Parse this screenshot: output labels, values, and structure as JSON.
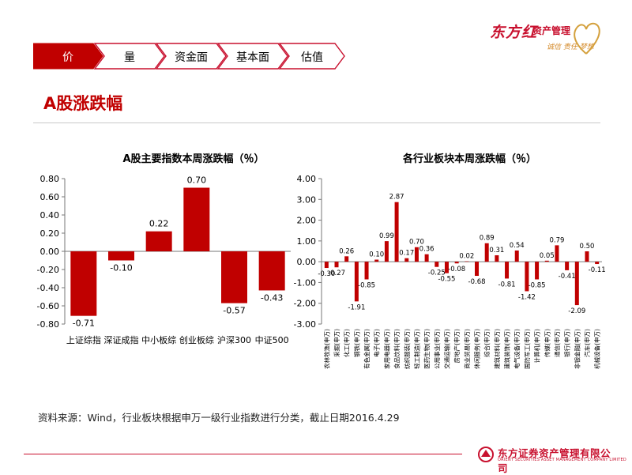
{
  "header": {
    "tabs": [
      {
        "label": "价",
        "active": true
      },
      {
        "label": "量",
        "active": false
      },
      {
        "label": "资金面",
        "active": false
      },
      {
        "label": "基本面",
        "active": false
      },
      {
        "label": "估值",
        "active": false
      }
    ],
    "brand": "东方红",
    "brand_sub": "资产管理",
    "brand_tagline": "诚信 责任 梦想",
    "accent_color": "#c8102e",
    "bar_color": "#c00000"
  },
  "page_title": "A股涨跌幅",
  "source_note": "资料来源：Wind，行业板块根据申万一级行业指数进行分类，截止日期2016.4.29",
  "footer": {
    "company_cn": "东方证券资产管理有限公司",
    "company_en": "ORIENT SECURITIES ASSET MANAGEMENT COMPANY LIMITED"
  },
  "chart_data": [
    {
      "type": "bar",
      "title": "A股主要指数本周涨跌幅（％）",
      "categories": [
        "上证综指",
        "深证成指",
        "中小板综",
        "创业板综",
        "沪深300",
        "中证500"
      ],
      "values": [
        -0.71,
        -0.1,
        0.22,
        0.7,
        -0.57,
        -0.43
      ],
      "data_labels": [
        "-0.71",
        "-0.10",
        "0.22",
        "0.70",
        "-0.57",
        "-0.43"
      ],
      "ylim": [
        -0.8,
        0.8
      ],
      "yticks": [
        "-0.80",
        "-0.60",
        "-0.40",
        "-0.20",
        "0.00",
        "0.20",
        "0.40",
        "0.60",
        "0.80"
      ],
      "grid": false,
      "legend": false
    },
    {
      "type": "bar",
      "title": "各行业板块本周涨跌幅（％）",
      "categories": [
        "农林牧渔(申万)",
        "采掘(申万)",
        "化工(申万)",
        "钢铁(申万)",
        "有色金属(申万)",
        "电子(申万)",
        "家用电器(申万)",
        "食品饮料(申万)",
        "纺织服装(申万)",
        "轻工制造(申万)",
        "医药生物(申万)",
        "公用事业(申万)",
        "交通运输(申万)",
        "房地产(申万)",
        "商业贸易(申万)",
        "休闲服务(申万)",
        "综合(申万)",
        "建筑材料(申万)",
        "建筑装饰(申万)",
        "电气设备(申万)",
        "国防军工(申万)",
        "计算机(申万)",
        "传媒(申万)",
        "通信(申万)",
        "银行(申万)",
        "非银金融(申万)",
        "汽车(申万)",
        "机械设备(申万)"
      ],
      "values": [
        -0.3,
        -0.27,
        0.26,
        -1.91,
        -0.85,
        0.1,
        0.99,
        2.87,
        0.17,
        0.7,
        0.36,
        -0.25,
        -0.55,
        -0.08,
        0.02,
        -0.68,
        0.89,
        0.31,
        -0.81,
        0.54,
        -1.42,
        -0.85,
        0.05,
        0.79,
        -0.41,
        -2.09,
        0.5,
        -0.11
      ],
      "data_labels": [
        "-0.30",
        "-0.27",
        "0.26",
        "-1.91",
        "-0.85",
        "0.10",
        "0.99",
        "2.87",
        "0.17",
        "0.70",
        "0.36",
        "-0.25",
        "-0.55",
        "-0.08",
        "0.02",
        "-0.68",
        "0.89",
        "0.31",
        "-0.81",
        "0.54",
        "-1.42",
        "-0.85",
        "0.05",
        "0.79",
        "-0.41",
        "-2.09",
        "0.50",
        "-0.11"
      ],
      "ylim": [
        -3.0,
        4.0
      ],
      "yticks": [
        "-3.00",
        "-2.00",
        "-1.00",
        "0.00",
        "1.00",
        "2.00",
        "3.00",
        "4.00"
      ],
      "grid": false,
      "legend": false
    }
  ]
}
